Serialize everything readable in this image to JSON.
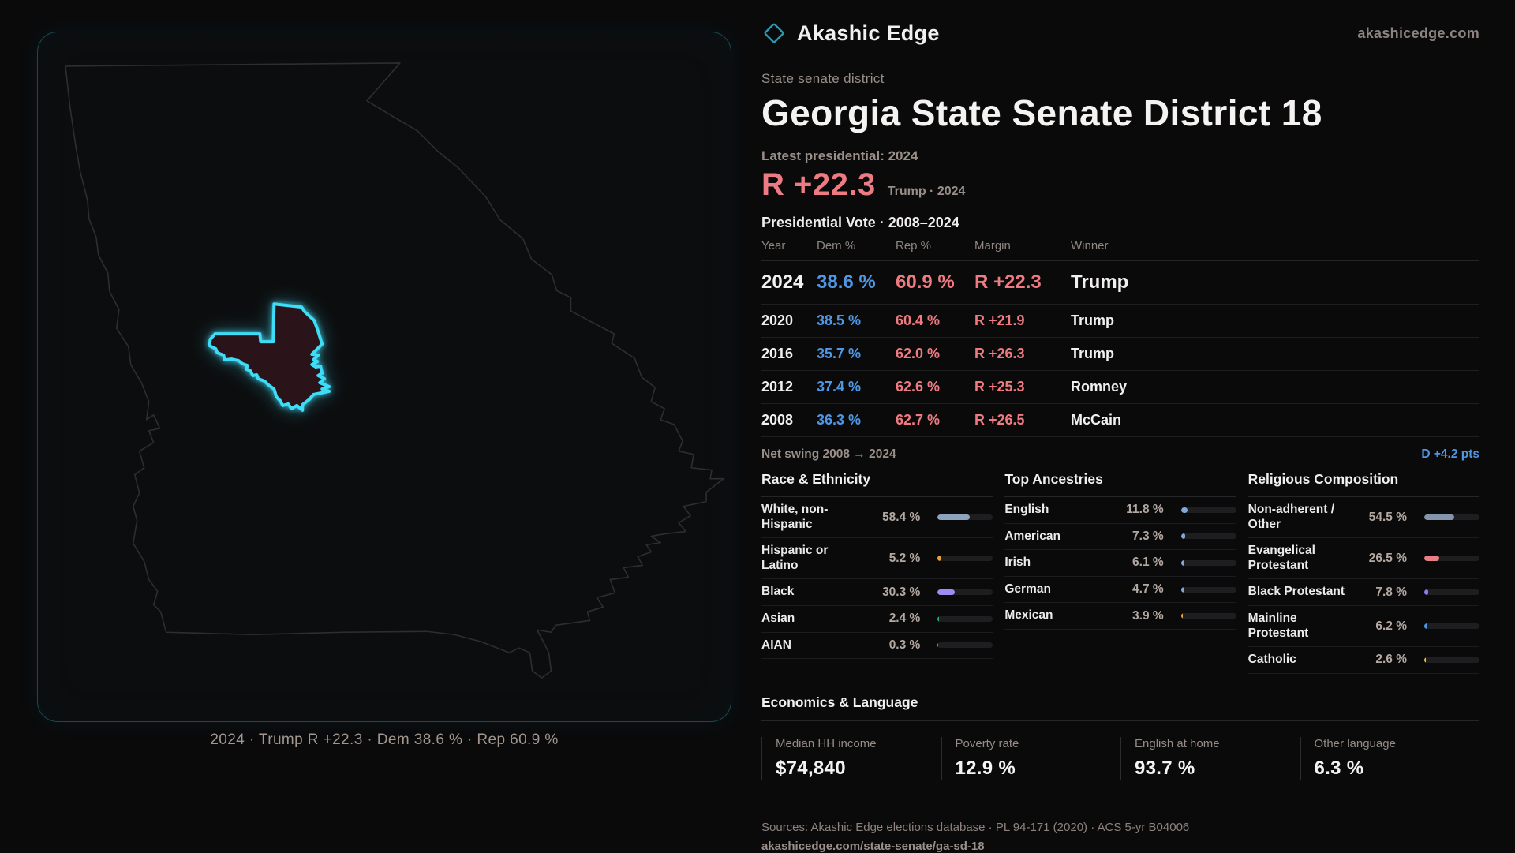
{
  "brand": {
    "name": "Akashic Edge",
    "site": "akashicedge.com"
  },
  "page": {
    "eyebrow": "State senate district",
    "title": "Georgia State Senate District 18",
    "latest_label": "Latest presidential: 2024",
    "margin_value": "R +22.3",
    "margin_context": "Trump · 2024",
    "table_title": "Presidential Vote · 2008–2024"
  },
  "map": {
    "caption": "2024 · Trump R +22.3 · Dem 38.6 % · Rep 60.9 %"
  },
  "vote_table": {
    "headers": {
      "year": "Year",
      "dem": "Dem %",
      "rep": "Rep %",
      "margin": "Margin",
      "winner": "Winner"
    },
    "rows": [
      {
        "year": "2024",
        "dem": "38.6 %",
        "rep": "60.9 %",
        "margin": "R +22.3",
        "winner": "Trump"
      },
      {
        "year": "2020",
        "dem": "38.5 %",
        "rep": "60.4 %",
        "margin": "R +21.9",
        "winner": "Trump"
      },
      {
        "year": "2016",
        "dem": "35.7 %",
        "rep": "62.0 %",
        "margin": "R +26.3",
        "winner": "Trump"
      },
      {
        "year": "2012",
        "dem": "37.4 %",
        "rep": "62.6 %",
        "margin": "R +25.3",
        "winner": "Romney"
      },
      {
        "year": "2008",
        "dem": "36.3 %",
        "rep": "62.7 %",
        "margin": "R +26.5",
        "winner": "McCain"
      }
    ],
    "net_swing_label": "Net swing 2008 → 2024",
    "net_swing_value": "D +4.2 pts"
  },
  "demographics": {
    "race": {
      "title": "Race & Ethnicity",
      "rows": [
        {
          "label": "White, non-Hispanic",
          "value": "58.4 %",
          "pct": 58.4,
          "color": "#8da2bc"
        },
        {
          "label": "Hispanic or Latino",
          "value": "5.2 %",
          "pct": 5.2,
          "color": "#e6a23c"
        },
        {
          "label": "Black",
          "value": "30.3 %",
          "pct": 30.3,
          "color": "#9c8bf2"
        },
        {
          "label": "Asian",
          "value": "2.4 %",
          "pct": 2.4,
          "color": "#27a876"
        },
        {
          "label": "AIAN",
          "value": "0.3 %",
          "pct": 0.3,
          "color": "#8da2bc"
        }
      ]
    },
    "ancestries": {
      "title": "Top Ancestries",
      "rows": [
        {
          "label": "English",
          "value": "11.8 %",
          "pct": 11.8,
          "color": "#7fa9d9"
        },
        {
          "label": "American",
          "value": "7.3 %",
          "pct": 7.3,
          "color": "#7fa9d9"
        },
        {
          "label": "Irish",
          "value": "6.1 %",
          "pct": 6.1,
          "color": "#7fa9d9"
        },
        {
          "label": "German",
          "value": "4.7 %",
          "pct": 4.7,
          "color": "#7fa9d9"
        },
        {
          "label": "Mexican",
          "value": "3.9 %",
          "pct": 3.9,
          "color": "#e6a23c"
        }
      ]
    },
    "religion": {
      "title": "Religious Composition",
      "rows": [
        {
          "label": "Non-adherent / Other",
          "value": "54.5 %",
          "pct": 54.5,
          "color": "#8494ab"
        },
        {
          "label": "Evangelical Protestant",
          "value": "26.5 %",
          "pct": 26.5,
          "color": "#e87f87"
        },
        {
          "label": "Black Protestant",
          "value": "7.8 %",
          "pct": 7.8,
          "color": "#8f7cf0"
        },
        {
          "label": "Mainline Protestant",
          "value": "6.2 %",
          "pct": 6.2,
          "color": "#4f97e4"
        },
        {
          "label": "Catholic",
          "value": "2.6 %",
          "pct": 2.6,
          "color": "#e8c23c"
        }
      ]
    }
  },
  "economics": {
    "title": "Economics & Language",
    "stats": [
      {
        "label": "Median HH income",
        "value": "$74,840"
      },
      {
        "label": "Poverty rate",
        "value": "12.9 %"
      },
      {
        "label": "English at home",
        "value": "93.7 %"
      },
      {
        "label": "Other language",
        "value": "6.3 %"
      }
    ]
  },
  "footer": {
    "sources": "Sources: Akashic Edge elections database · PL 94-171 (2020) · ACS 5-yr B04006",
    "url": "akashicedge.com/state-senate/ga-sd-18"
  },
  "colors": {
    "background": "#0a0a0b",
    "accent_cyan": "#3edcf6",
    "dem_blue": "#4f97e4",
    "rep_red": "#ee7b82",
    "muted_text": "#9a8e88",
    "panel_border": "#1a4853"
  },
  "chart_data": [
    {
      "type": "table",
      "title": "Presidential Vote · 2008–2024",
      "columns": [
        "Year",
        "Dem %",
        "Rep %",
        "Margin",
        "Winner"
      ],
      "rows": [
        [
          2024,
          38.6,
          60.9,
          "R +22.3",
          "Trump"
        ],
        [
          2020,
          38.5,
          60.4,
          "R +21.9",
          "Trump"
        ],
        [
          2016,
          35.7,
          62.0,
          "R +26.3",
          "Trump"
        ],
        [
          2012,
          37.4,
          62.6,
          "R +25.3",
          "Romney"
        ],
        [
          2008,
          36.3,
          62.7,
          "R +26.5",
          "McCain"
        ]
      ],
      "note": "Net swing 2008 → 2024: D +4.2 pts"
    },
    {
      "type": "bar",
      "title": "Race & Ethnicity",
      "categories": [
        "White, non-Hispanic",
        "Hispanic or Latino",
        "Black",
        "Asian",
        "AIAN"
      ],
      "values": [
        58.4,
        5.2,
        30.3,
        2.4,
        0.3
      ],
      "xlim": [
        0,
        100
      ]
    },
    {
      "type": "bar",
      "title": "Top Ancestries",
      "categories": [
        "English",
        "American",
        "Irish",
        "German",
        "Mexican"
      ],
      "values": [
        11.8,
        7.3,
        6.1,
        4.7,
        3.9
      ],
      "xlim": [
        0,
        100
      ]
    },
    {
      "type": "bar",
      "title": "Religious Composition",
      "categories": [
        "Non-adherent / Other",
        "Evangelical Protestant",
        "Black Protestant",
        "Mainline Protestant",
        "Catholic"
      ],
      "values": [
        54.5,
        26.5,
        7.8,
        6.2,
        2.6
      ],
      "xlim": [
        0,
        100
      ]
    },
    {
      "type": "bar",
      "title": "Economics & Language",
      "categories": [
        "Median HH income ($)",
        "Poverty rate %",
        "English at home %",
        "Other language %"
      ],
      "values": [
        74840,
        12.9,
        93.7,
        6.3
      ]
    }
  ]
}
